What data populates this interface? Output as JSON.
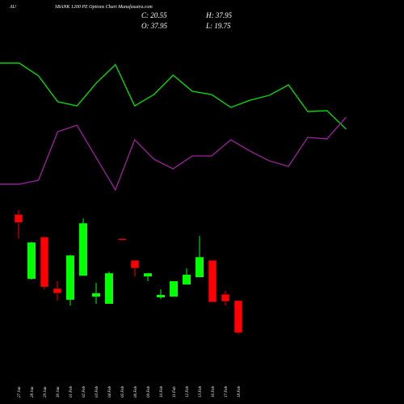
{
  "chart_data": [
    {
      "type": "line",
      "ylim": [
        0,
        100
      ],
      "series": [
        {
          "color": "#00e600",
          "values": [
            90.5,
            90.5,
            82.1,
            65.3,
            62.6,
            77.4,
            89.5,
            62.6,
            70.0,
            82.6,
            72.1,
            70.0,
            61.6,
            66.3,
            69.5,
            76.3,
            58.9,
            59.5,
            47.4
          ]
        },
        {
          "color": "#a020a0",
          "values": [
            11.6,
            11.6,
            14.2,
            45.8,
            50.0,
            28.9,
            7.9,
            40.5,
            27.9,
            21.6,
            30.0,
            30.0,
            40.5,
            33.2,
            26.8,
            23.2,
            42.1,
            41.1,
            55.3
          ]
        }
      ]
    },
    {
      "type": "candlestick",
      "corner": "AU",
      "title": "SBANK 1200 PE Options Chart Munafasutra.com",
      "info": [
        "C: 20.55",
        "H: 37.95",
        "O: 37.95",
        "L: 19.75"
      ],
      "up_color": "#00ff00",
      "down_color": "#ff0000",
      "ylim": [
        17,
        89
      ],
      "categories": [
        "27 Jan",
        "28 Jan",
        "29 Jan",
        "30 Jan",
        "01 Feb",
        "02 Feb",
        "03 Feb",
        "04 Feb",
        "05 Feb",
        "06 Feb",
        "09 Feb",
        "10 Feb",
        "11 Feb",
        "12 Feb",
        "13 Feb",
        "16 Feb",
        "17 Feb",
        "18 Feb"
      ],
      "open": [
        84.5,
        49.7,
        72.3,
        44.5,
        38.4,
        51.4,
        40.1,
        36.2,
        71.4,
        59.7,
        51.0,
        39.7,
        40.1,
        46.6,
        50.6,
        59.7,
        41.4,
        37.95
      ],
      "high": [
        86.7,
        69.7,
        72.3,
        48.4,
        62.7,
        82.3,
        47.5,
        53.6,
        71.4,
        59.7,
        52.7,
        44.0,
        48.4,
        55.4,
        72.8,
        59.7,
        43.2,
        37.95
      ],
      "low": [
        71.4,
        49.3,
        44.0,
        38.0,
        35.3,
        51.4,
        36.2,
        36.2,
        70.6,
        51.0,
        48.4,
        38.8,
        40.1,
        46.6,
        50.6,
        37.1,
        35.3,
        19.75
      ],
      "close": [
        80.1,
        69.3,
        45.3,
        41.9,
        62.3,
        79.7,
        41.9,
        52.7,
        70.6,
        55.4,
        52.7,
        41.0,
        48.4,
        51.9,
        61.4,
        37.1,
        37.5,
        20.55
      ]
    }
  ]
}
